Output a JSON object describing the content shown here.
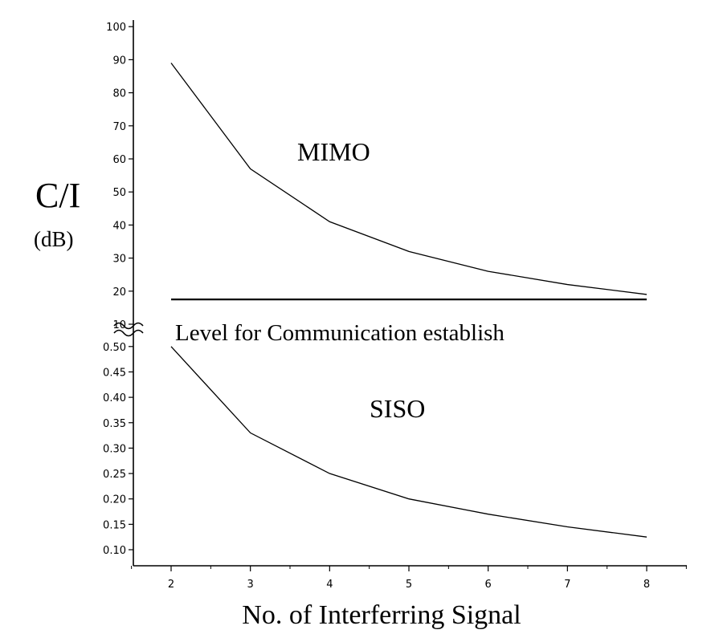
{
  "chart_data": {
    "type": "line",
    "title": "",
    "xlabel": "No. of Interferring Signal",
    "ylabel": "C/I",
    "ylabel_unit": "(dB)",
    "x_ticks": [
      "2",
      "3",
      "4",
      "5",
      "6",
      "7",
      "8"
    ],
    "xlim": [
      1.5,
      8.5
    ],
    "broken_y_axis": true,
    "upper_panel": {
      "ylim": [
        10,
        100
      ],
      "y_ticks": [
        "10",
        "20",
        "30",
        "40",
        "50",
        "60",
        "70",
        "80",
        "90",
        "100"
      ],
      "series": [
        {
          "name": "MIMO",
          "x": [
            2,
            3,
            4,
            5,
            6,
            7,
            8
          ],
          "y": [
            89,
            57,
            41,
            32,
            26,
            22,
            19
          ]
        }
      ],
      "threshold": {
        "label": "Level for Communication establish",
        "y": 17.5,
        "x_range": [
          2,
          8
        ]
      }
    },
    "lower_panel": {
      "ylim": [
        0.1,
        0.5
      ],
      "y_ticks": [
        "0.10",
        "0.15",
        "0.20",
        "0.25",
        "0.30",
        "0.35",
        "0.40",
        "0.45",
        "0.50"
      ],
      "series": [
        {
          "name": "SISO",
          "x": [
            2,
            3,
            4,
            5,
            6,
            7,
            8
          ],
          "y": [
            0.5,
            0.33,
            0.25,
            0.2,
            0.17,
            0.145,
            0.125
          ]
        }
      ]
    },
    "grid": false,
    "legend": "none"
  }
}
